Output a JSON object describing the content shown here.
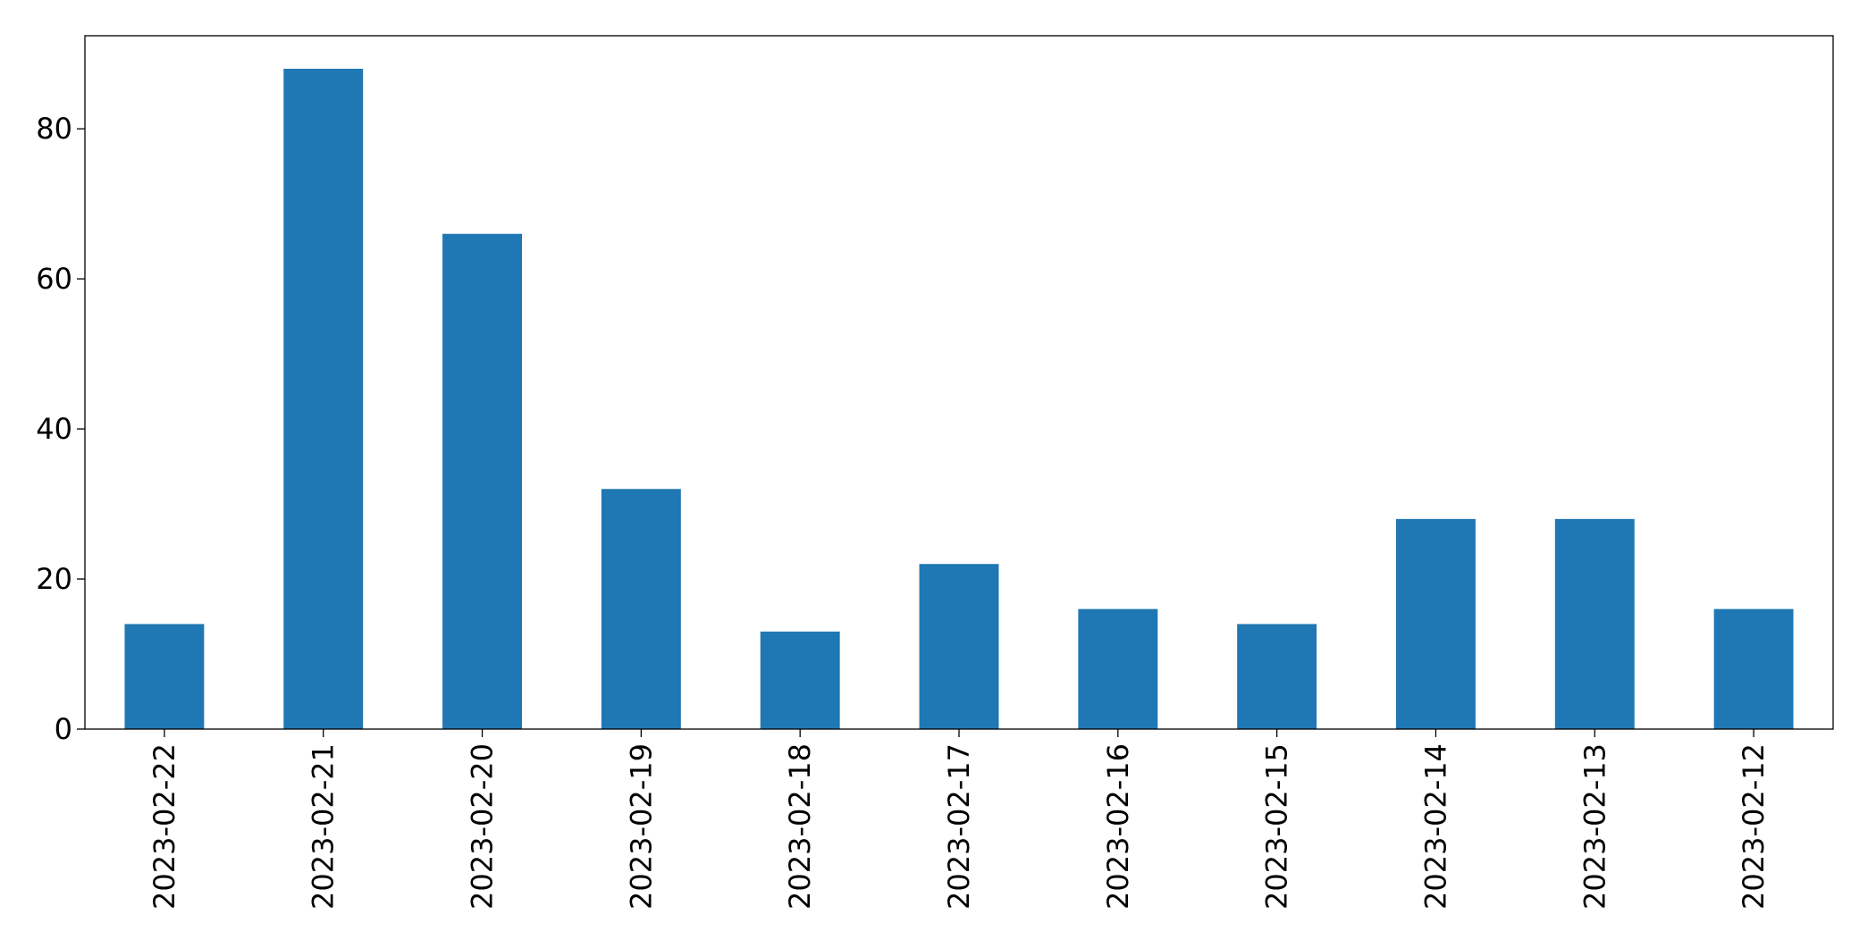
{
  "chart_data": {
    "type": "bar",
    "categories": [
      "2023-02-22",
      "2023-02-21",
      "2023-02-20",
      "2023-02-19",
      "2023-02-18",
      "2023-02-17",
      "2023-02-16",
      "2023-02-15",
      "2023-02-14",
      "2023-02-13",
      "2023-02-12"
    ],
    "values": [
      14,
      88,
      66,
      32,
      13,
      22,
      16,
      14,
      28,
      28,
      16
    ],
    "color": "#1f77b4",
    "ylim": [
      0,
      92.4
    ],
    "yticks": [
      0,
      20,
      40,
      60,
      80
    ],
    "grid": false
  }
}
